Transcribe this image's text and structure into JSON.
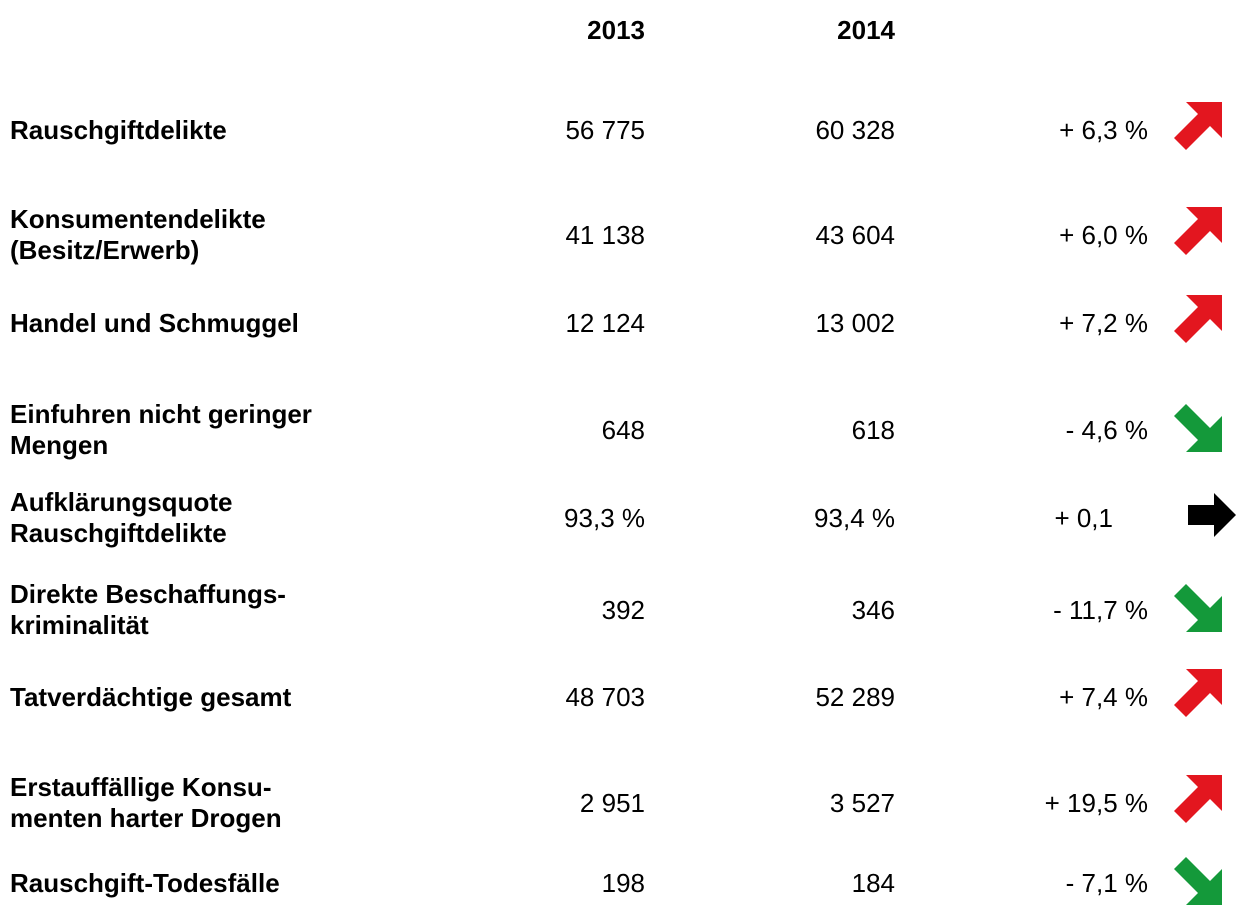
{
  "header": {
    "columns": [
      "2013",
      "2014"
    ]
  },
  "table": {
    "rows": [
      {
        "label": [
          "Rauschgiftdelikte"
        ],
        "cells": [
          "56 775",
          "60 328",
          "+ 6,3 %"
        ]
      },
      {
        "label": [
          "Konsumentendelikte",
          "(Besitz/Erwerb)"
        ],
        "cells": [
          "41 138",
          "43 604",
          "+ 6,0 %"
        ]
      },
      {
        "label": [
          "Handel und Schmuggel"
        ],
        "cells": [
          "12 124",
          "13 002",
          "+ 7,2 %"
        ]
      },
      {
        "label": [
          "Einfuhren nicht geringer",
          "Mengen"
        ],
        "cells": [
          "648",
          "618",
          "- 4,6 %"
        ]
      },
      {
        "label": [
          "Aufklärungsquote",
          "Rauschgiftdelikte"
        ],
        "cells": [
          "93,3 %",
          "93,4 %",
          "+ 0,1"
        ]
      },
      {
        "label": [
          "Direkte Beschaffungs-",
          "kriminalität"
        ],
        "cells": [
          "392",
          "346",
          "- 11,7 %"
        ]
      },
      {
        "label": [
          "Tatverdächtige gesamt"
        ],
        "cells": [
          "48 703",
          "52 289",
          "+ 7,4 %"
        ]
      },
      {
        "label": [
          "Erstauffällige Konsu-",
          "menten harter Drogen"
        ],
        "cells": [
          "2 951",
          "3 527",
          "+ 19,5 %"
        ]
      },
      {
        "label": [
          "Rauschgift-Todesfälle"
        ],
        "cells": [
          "198",
          "184",
          "- 7,1 %"
        ]
      }
    ]
  }
}
